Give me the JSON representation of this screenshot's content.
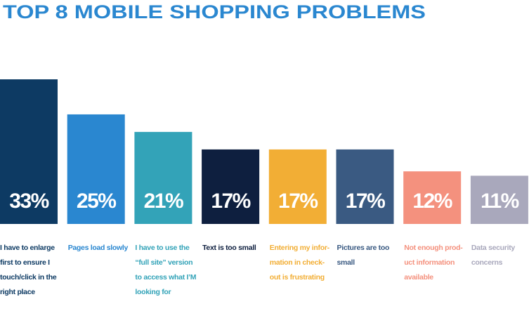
{
  "chart_data": {
    "type": "bar",
    "title": "TOP 8 MOBILE SHOPPING PROBLEMS",
    "categories": [
      [
        "I have to enlarge",
        "first to ensure I",
        "touch/click in the",
        "right place"
      ],
      [
        "Pages load slowly"
      ],
      [
        "I have to use the",
        "“full site” version",
        "to access what I’M",
        "looking for"
      ],
      [
        "Text is too small"
      ],
      [
        "Entering my infor-",
        "mation in check-",
        "out is frustrating"
      ],
      [
        "Pictures are too",
        "small"
      ],
      [
        "Not enough prod-",
        "uct information",
        "available"
      ],
      [
        "Data security",
        "concerns"
      ]
    ],
    "values": [
      33,
      25,
      21,
      17,
      17,
      17,
      12,
      11
    ],
    "value_labels": [
      "33%",
      "25%",
      "21%",
      "17%",
      "17%",
      "17%",
      "12%",
      "11%"
    ],
    "colors": [
      "#0d3a63",
      "#2a87d0",
      "#33a3b8",
      "#0e1f3f",
      "#f2ae35",
      "#3a5a82",
      "#f4917e",
      "#a9a8bc"
    ],
    "ylim": [
      0,
      33
    ]
  }
}
